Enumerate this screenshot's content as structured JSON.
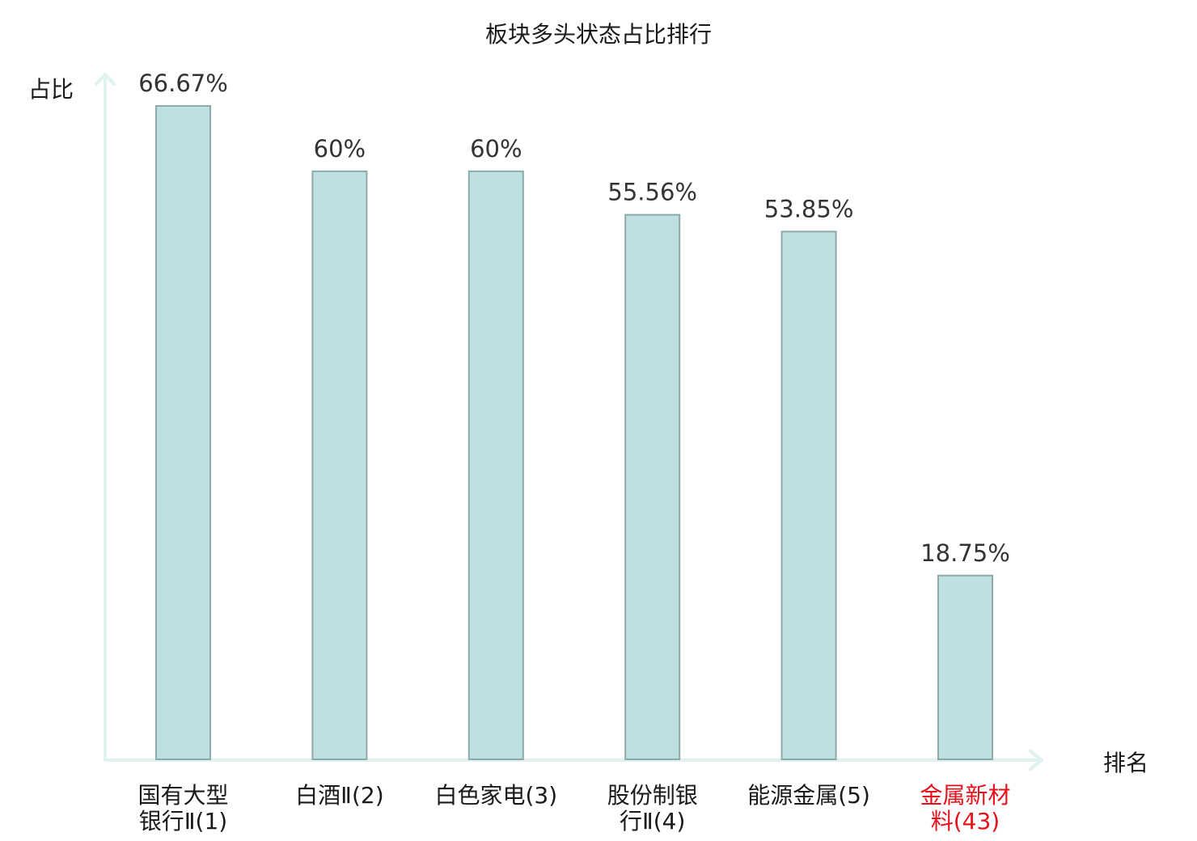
{
  "chart_data": {
    "type": "bar",
    "title": "板块多头状态占比排行",
    "ylabel": "占比",
    "xlabel": "排名",
    "ylim": [
      0,
      70
    ],
    "grid": false,
    "categories": [
      [
        "国有大型",
        "银行Ⅱ(1)"
      ],
      [
        "白酒Ⅱ(2)"
      ],
      [
        "白色家电(3)"
      ],
      [
        "股份制银",
        "行Ⅱ(4)"
      ],
      [
        "能源金属(5)"
      ],
      [
        "金属新材",
        "料(43)"
      ]
    ],
    "values": [
      66.67,
      60,
      60,
      55.56,
      53.85,
      18.75
    ],
    "value_labels": [
      "66.67%",
      "60%",
      "60%",
      "55.56%",
      "53.85%",
      "18.75%"
    ],
    "highlight_index": 5
  },
  "colors": {
    "bar_fill": "#bde0e3",
    "bar_stroke": "#8fa9ab",
    "axis": "#e0f2ef",
    "label_text": "#1a1a1a",
    "highlight_text": "#e8111b"
  }
}
